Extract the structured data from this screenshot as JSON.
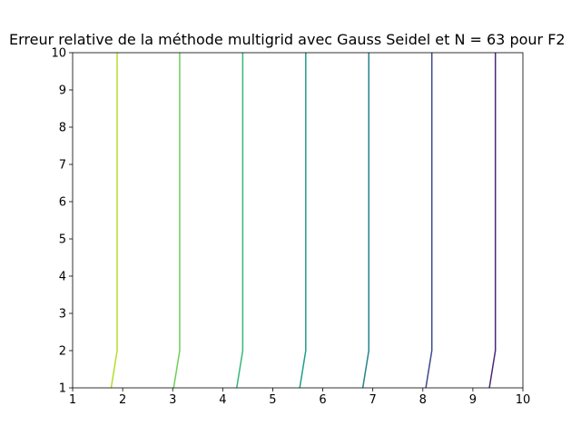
{
  "chart_data": {
    "type": "line",
    "title": "Erreur relative de la méthode multigrid avec Gauss Seidel et N = 63 pour F2",
    "xlabel": "",
    "ylabel": "",
    "xlim": [
      1,
      10
    ],
    "ylim": [
      1,
      10
    ],
    "xticks": [
      "1",
      "2",
      "3",
      "4",
      "5",
      "6",
      "7",
      "8",
      "9",
      "10"
    ],
    "yticks": [
      "1",
      "2",
      "3",
      "4",
      "5",
      "6",
      "7",
      "8",
      "9",
      "10"
    ],
    "grid": false,
    "series": [
      {
        "color": "#b5de2b",
        "points": [
          [
            1.77,
            1
          ],
          [
            1.89,
            2
          ],
          [
            1.89,
            10
          ]
        ]
      },
      {
        "color": "#6ece58",
        "points": [
          [
            3.02,
            1
          ],
          [
            3.14,
            2
          ],
          [
            3.14,
            10
          ]
        ]
      },
      {
        "color": "#35b779",
        "points": [
          [
            4.28,
            1
          ],
          [
            4.4,
            2
          ],
          [
            4.4,
            10
          ]
        ]
      },
      {
        "color": "#1f9e89",
        "points": [
          [
            5.54,
            1
          ],
          [
            5.66,
            2
          ],
          [
            5.66,
            10
          ]
        ]
      },
      {
        "color": "#26828e",
        "points": [
          [
            6.8,
            1
          ],
          [
            6.92,
            2
          ],
          [
            6.92,
            10
          ]
        ]
      },
      {
        "color": "#3e4989",
        "points": [
          [
            8.06,
            1
          ],
          [
            8.18,
            2
          ],
          [
            8.18,
            10
          ]
        ]
      },
      {
        "color": "#482878",
        "points": [
          [
            9.33,
            1
          ],
          [
            9.45,
            2
          ],
          [
            9.45,
            10
          ]
        ]
      }
    ]
  }
}
